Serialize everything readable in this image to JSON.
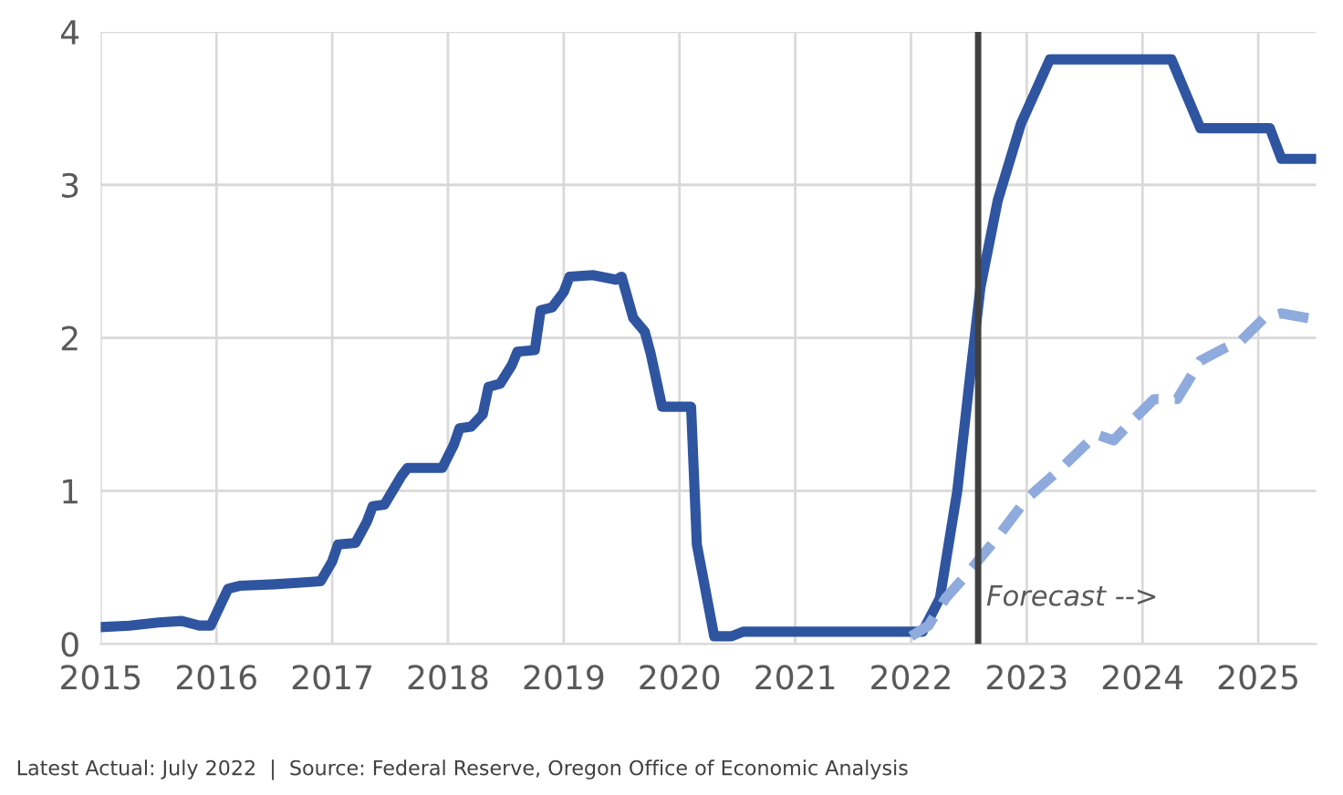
{
  "chart_data": {
    "type": "line",
    "series": [
      {
        "color": "#2f55a1",
        "line_style": "solid",
        "x": [
          2015.0,
          2015.25,
          2015.5,
          2015.7,
          2015.85,
          2015.95,
          2016.1,
          2016.2,
          2016.5,
          2016.7,
          2016.9,
          2017.0,
          2017.05,
          2017.2,
          2017.3,
          2017.35,
          2017.45,
          2017.6,
          2017.65,
          2017.95,
          2018.05,
          2018.1,
          2018.2,
          2018.3,
          2018.35,
          2018.45,
          2018.55,
          2018.6,
          2018.75,
          2018.8,
          2018.9,
          2019.0,
          2019.05,
          2019.25,
          2019.45,
          2019.5,
          2019.6,
          2019.7,
          2019.75,
          2019.85,
          2020.0,
          2020.1,
          2020.15,
          2020.3,
          2020.45,
          2020.55,
          2021.0,
          2022.0,
          2022.1,
          2022.25,
          2022.4,
          2022.5,
          2022.6,
          2022.75,
          2022.95,
          2023.2,
          2024.25,
          2024.5,
          2025.1,
          2025.2,
          2025.5
        ],
        "values": [
          0.11,
          0.12,
          0.14,
          0.15,
          0.12,
          0.12,
          0.36,
          0.38,
          0.39,
          0.4,
          0.41,
          0.54,
          0.65,
          0.66,
          0.8,
          0.9,
          0.91,
          1.1,
          1.15,
          1.15,
          1.3,
          1.41,
          1.42,
          1.5,
          1.68,
          1.7,
          1.82,
          1.91,
          1.92,
          2.18,
          2.2,
          2.3,
          2.4,
          2.41,
          2.38,
          2.4,
          2.13,
          2.04,
          1.9,
          1.55,
          1.55,
          1.55,
          0.65,
          0.05,
          0.05,
          0.08,
          0.08,
          0.08,
          0.08,
          0.3,
          1.0,
          1.68,
          2.33,
          2.9,
          3.4,
          3.82,
          3.82,
          3.37,
          3.37,
          3.17,
          3.17
        ]
      },
      {
        "color": "#8faadc",
        "line_style": "dashed",
        "x": [
          2022.0,
          2022.15,
          2022.3,
          2022.5,
          2022.75,
          2023.0,
          2023.3,
          2023.6,
          2023.75,
          2023.9,
          2024.1,
          2024.3,
          2024.5,
          2024.7,
          2024.85,
          2025.05,
          2025.2,
          2025.5
        ],
        "values": [
          0.05,
          0.12,
          0.3,
          0.47,
          0.7,
          0.95,
          1.15,
          1.37,
          1.33,
          1.45,
          1.6,
          1.6,
          1.85,
          1.93,
          1.98,
          2.13,
          2.16,
          2.12
        ]
      }
    ],
    "xlim": [
      2015,
      2025.5
    ],
    "xticks": [
      2015,
      2016,
      2017,
      2018,
      2019,
      2020,
      2021,
      2022,
      2023,
      2024,
      2025
    ],
    "ylim": [
      0,
      4
    ],
    "yticks": [
      0,
      1,
      2,
      3,
      4
    ],
    "grid": true,
    "legend": false,
    "marker": "none",
    "ref_lines": [
      {
        "axis": "x",
        "value": 2022.58,
        "color": "#404040"
      }
    ],
    "annotations": [
      {
        "text": "Forecast -->",
        "x": 2022.65,
        "y": 0.25
      },
      "Latest Actual: July 2022  |  Source: Federal Reserve, Oregon Office of Economic Analysis"
    ]
  }
}
